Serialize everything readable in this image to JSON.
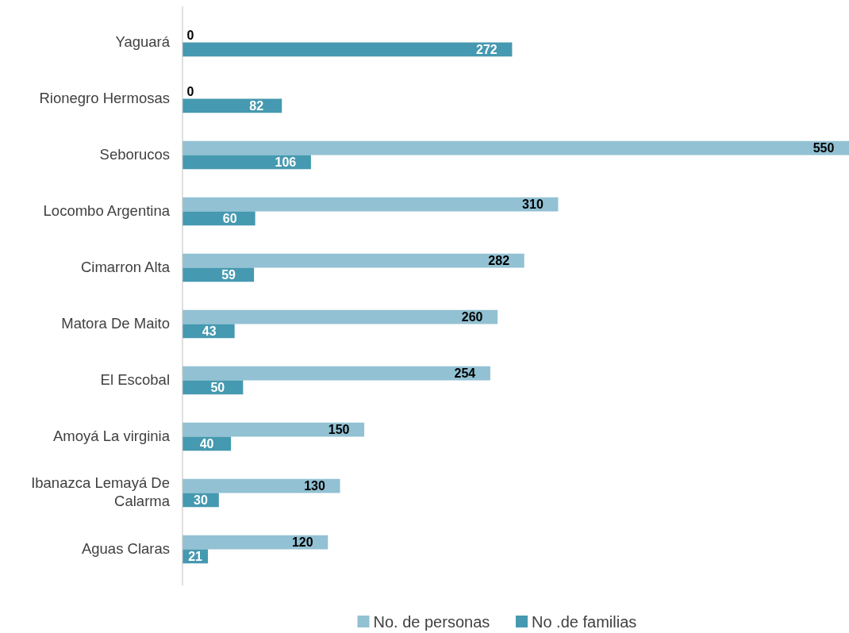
{
  "chart_data": {
    "type": "bar",
    "orientation": "horizontal",
    "categories": [
      "Yaguará",
      "Rionegro Hermosas",
      "Seborucos",
      "Locombo Argentina",
      "Cimarron Alta",
      "Matora De Maito",
      "El Escobal",
      "Amoyá La virginia",
      "Ibanazca Lemayá De Calarma",
      "Aguas Claras"
    ],
    "series": [
      {
        "name": "No. de personas",
        "color": "#92c1d3",
        "values": [
          0,
          0,
          550,
          310,
          282,
          260,
          254,
          150,
          130,
          120
        ]
      },
      {
        "name": "No .de familias",
        "color": "#4599b0",
        "values": [
          272,
          82,
          106,
          60,
          59,
          43,
          50,
          40,
          30,
          21
        ]
      }
    ],
    "data_labels": true,
    "legend": "bottom"
  }
}
